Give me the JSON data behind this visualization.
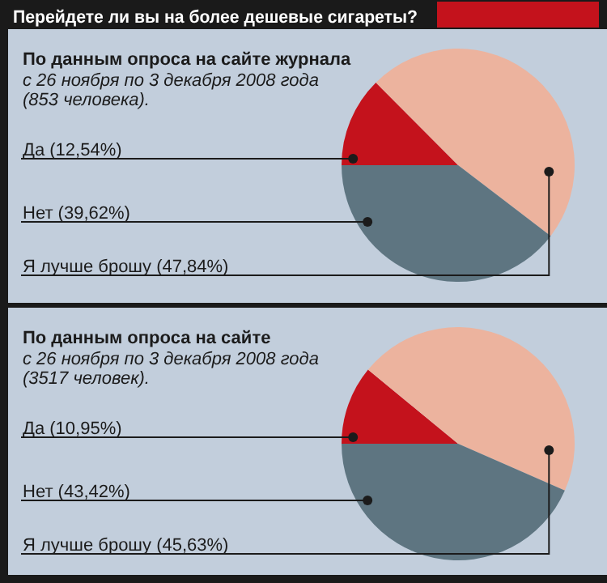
{
  "chart_data": [
    {
      "type": "pie",
      "title": "Перейдете ли вы на более дешевые сигареты?",
      "subtitle": "По данным опроса на сайте журнала",
      "annotations": [
        "с  26 ноября по 3 декабря 2008 года",
        "(853 человека)."
      ],
      "categories": [
        "Да",
        "Я лучше брошу",
        "Нет"
      ],
      "values": [
        12.54,
        47.84,
        39.62
      ],
      "value_labels": [
        "(12,54%)",
        "(47,84%)",
        "(39,62%)"
      ],
      "colors": [
        "#c4121c",
        "#ecb39e",
        "#5e7581"
      ]
    },
    {
      "type": "pie",
      "subtitle": "По данным опроса на сайте",
      "annotations": [
        "с  26 ноября по 3 декабря 2008 года",
        "(3517 человек)."
      ],
      "categories": [
        "Да",
        "Я лучше брошу",
        "Нет"
      ],
      "values": [
        10.95,
        45.63,
        43.42
      ],
      "value_labels": [
        "(10,95%)",
        "(45,63%)",
        "(43,42%)"
      ],
      "colors": [
        "#c4121c",
        "#ecb39e",
        "#5e7581"
      ]
    }
  ]
}
